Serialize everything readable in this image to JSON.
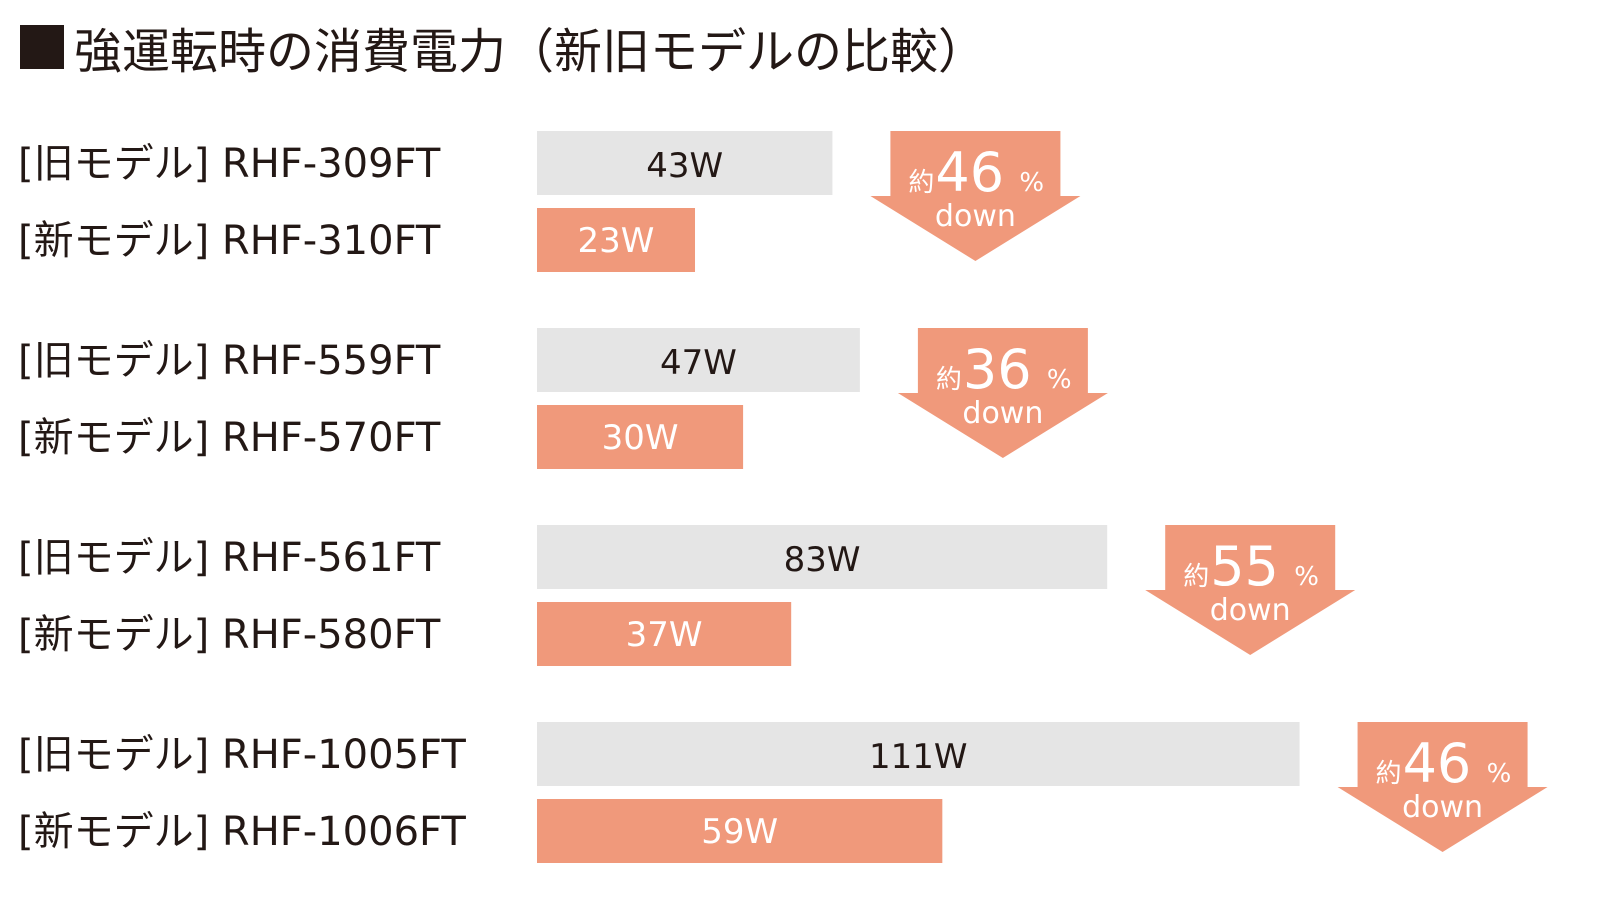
{
  "chart_data": {
    "type": "bar",
    "orientation": "horizontal",
    "title": "強運転時の消費電力（新旧モデルの比較）",
    "unit": "W",
    "groups": [
      {
        "old": {
          "label": "[旧モデル] RHF-309FT",
          "value": 43,
          "value_label": "43W"
        },
        "new": {
          "label": "[新モデル] RHF-310FT",
          "value": 23,
          "value_label": "23W"
        },
        "reduction": {
          "prefix": "約",
          "number": "46",
          "suffix": "%",
          "word": "down"
        }
      },
      {
        "old": {
          "label": "[旧モデル] RHF-559FT",
          "value": 47,
          "value_label": "47W"
        },
        "new": {
          "label": "[新モデル] RHF-570FT",
          "value": 30,
          "value_label": "30W"
        },
        "reduction": {
          "prefix": "約",
          "number": "36",
          "suffix": "%",
          "word": "down"
        }
      },
      {
        "old": {
          "label": "[旧モデル] RHF-561FT",
          "value": 83,
          "value_label": "83W"
        },
        "new": {
          "label": "[新モデル] RHF-580FT",
          "value": 37,
          "value_label": "37W"
        },
        "reduction": {
          "prefix": "約",
          "number": "55",
          "suffix": "%",
          "word": "down"
        }
      },
      {
        "old": {
          "label": "[旧モデル] RHF-1005FT",
          "value": 111,
          "value_label": "111W"
        },
        "new": {
          "label": "[新モデル] RHF-1006FT",
          "value": 59,
          "value_label": "59W"
        },
        "reduction": {
          "prefix": "約",
          "number": "46",
          "suffix": "%",
          "word": "down"
        }
      }
    ],
    "colors": {
      "old": "#e5e5e5",
      "new": "#f0997b",
      "arrow": "#f0997b",
      "text": "#231815"
    },
    "legend": "none",
    "grid": false
  }
}
